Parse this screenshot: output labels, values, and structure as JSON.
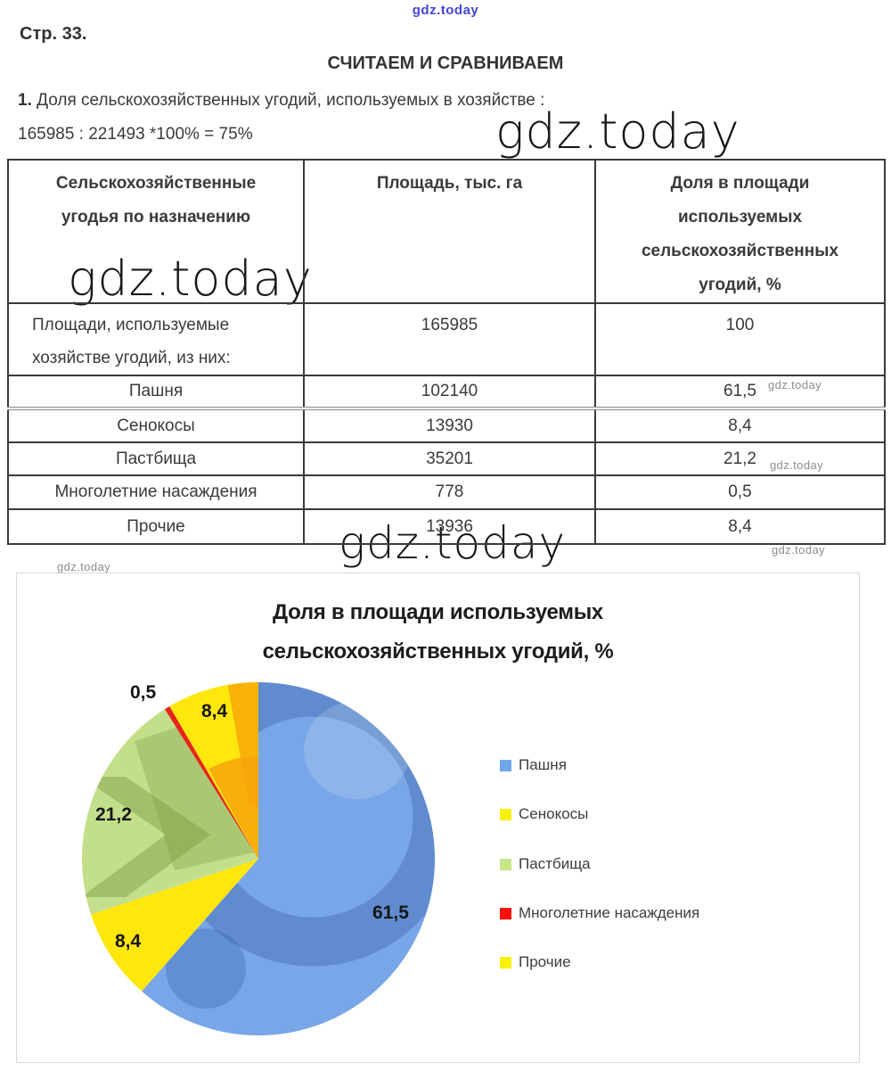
{
  "watermark": {
    "text": "gdz.today",
    "blue_color": "#4444d4",
    "gray_color": "#8c8c8c"
  },
  "header": {
    "page_label": "Стр. 33.",
    "section_title": "СЧИТАЕМ И СРАВНИВАЕМ",
    "item_number": "1.",
    "item_text": " Доля сельскохозяйственных угодий, используемых в хозяйстве :",
    "calculation": "165985 : 221493 *100% = 75%"
  },
  "table": {
    "col1_header": "Сельскохозяйственные\nугодья по назначению",
    "col2_header": "Площадь, тыс. га",
    "col3_header": "Доля в площади\nиспользуемых\nсельскохозяйственных\nугодий, %",
    "rows": [
      {
        "name": "Площади, используемые\nхозяйстве угодий, из них:",
        "area": "165985",
        "share": "100"
      },
      {
        "name": "Пашня",
        "area": "102140",
        "share": "61,5"
      },
      {
        "name": "Сенокосы",
        "area": "13930",
        "share": "8,4"
      },
      {
        "name": "Пастбища",
        "area": "35201",
        "share": "21,2"
      },
      {
        "name": "Многолетние насаждения",
        "area": "778",
        "share": "0,5"
      },
      {
        "name": "Прочие",
        "area": "13936",
        "share": "8,4"
      }
    ]
  },
  "chart": {
    "title_line1": "Доля в площади используемых",
    "title_line2": "сельскохозяйственных угодий, %"
  },
  "chart_data": {
    "type": "pie",
    "title": "Доля в площади используемых сельскохозяйственных угодий, %",
    "labels": [
      "Пашня",
      "Сенокосы",
      "Пастбища",
      "Многолетние насаждения",
      "Прочие"
    ],
    "values": [
      61.5,
      8.4,
      21.2,
      0.5,
      8.4
    ],
    "value_labels": [
      "61,5",
      "8,4",
      "21,2",
      "0,5",
      "8,4"
    ],
    "colors": [
      "#78A6E8",
      "#FFE70E",
      "#C3DF8C",
      "#E8231A",
      "#FFE70E"
    ],
    "legend_colors": [
      "#6EA6E9",
      "#F9F10A",
      "#C7E589",
      "#FB0F0B",
      "#F9F10A"
    ],
    "start_angle": "top, clockwise",
    "legend_position": "right",
    "data_labels_on": true
  }
}
